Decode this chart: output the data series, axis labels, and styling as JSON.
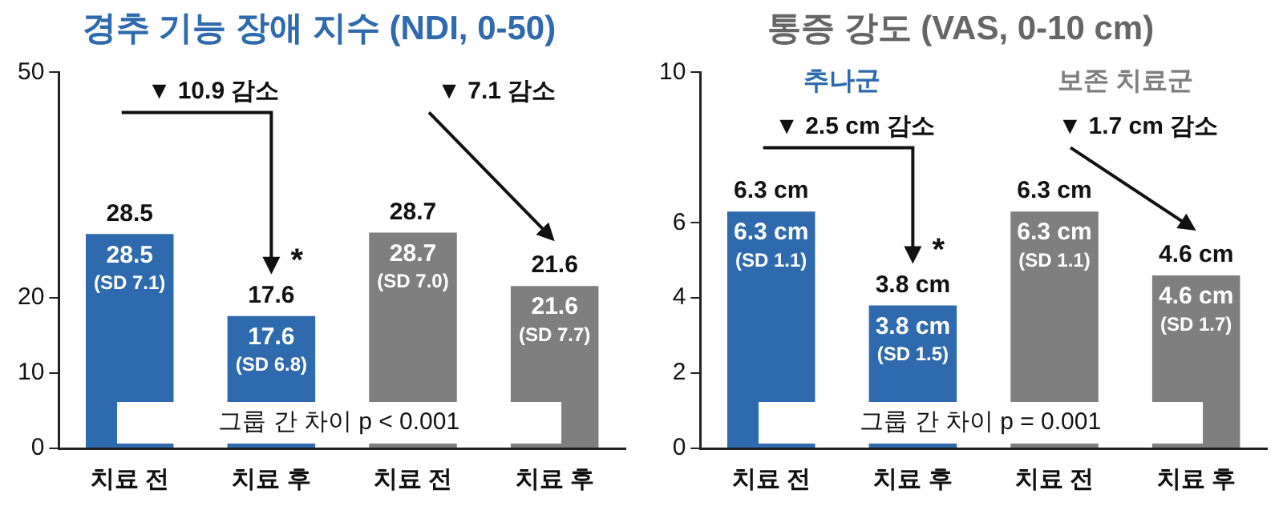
{
  "chart_data": [
    {
      "type": "bar",
      "title": "경추 기능 장애 지수 (NDI, 0-50)",
      "categories": [
        "치료 전",
        "치료 후",
        "치료 전",
        "치료 후"
      ],
      "series": [
        {
          "color": "#2e6aad",
          "values": [
            28.5,
            17.6,
            null,
            null
          ],
          "value_labels": [
            "28.5",
            "17.6",
            null,
            null
          ]
        },
        {
          "color": "#7f7f7f",
          "values": [
            null,
            null,
            28.7,
            21.6
          ],
          "value_labels": [
            null,
            null,
            "28.7",
            "21.6"
          ]
        }
      ],
      "ylim": [
        0,
        50
      ],
      "yticks": [
        0,
        10,
        20,
        50
      ],
      "annotations": [
        "28.5 (SD 7.1)",
        "17.6 (SD 6.8)",
        "28.7 (SD 7.0)",
        "21.6 (SD 7.7)",
        "▼ 10.9 감소",
        "*",
        "▼ 7.1 감소",
        "그룹 간 차이 p < 0.001"
      ]
    },
    {
      "type": "bar",
      "title": "통증 강도 (VAS, 0-10 cm)",
      "categories": [
        "치료 전",
        "치료 후",
        "치료 전",
        "치료 후"
      ],
      "series": [
        {
          "name": "추나군",
          "color": "#2e6aad",
          "values": [
            6.3,
            3.8,
            null,
            null
          ],
          "value_labels": [
            "6.3 cm",
            "3.8 cm",
            null,
            null
          ]
        },
        {
          "name": "보존 치료군",
          "color": "#7f7f7f",
          "values": [
            null,
            null,
            6.3,
            4.6
          ],
          "value_labels": [
            null,
            null,
            "6.3 cm",
            "4.6 cm"
          ]
        }
      ],
      "ylim": [
        0,
        10
      ],
      "yticks": [
        0,
        2,
        4,
        6,
        10
      ],
      "annotations": [
        "6.3 cm (SD 1.1)",
        "3.8 cm (SD 1.5)",
        "6.3 cm (SD 1.1)",
        "4.6 cm (SD 1.7)",
        "▼ 2.5 cm 감소",
        "*",
        "▼ 1.7 cm 감소",
        "그룹 간 차이 p = 0.001"
      ]
    }
  ]
}
